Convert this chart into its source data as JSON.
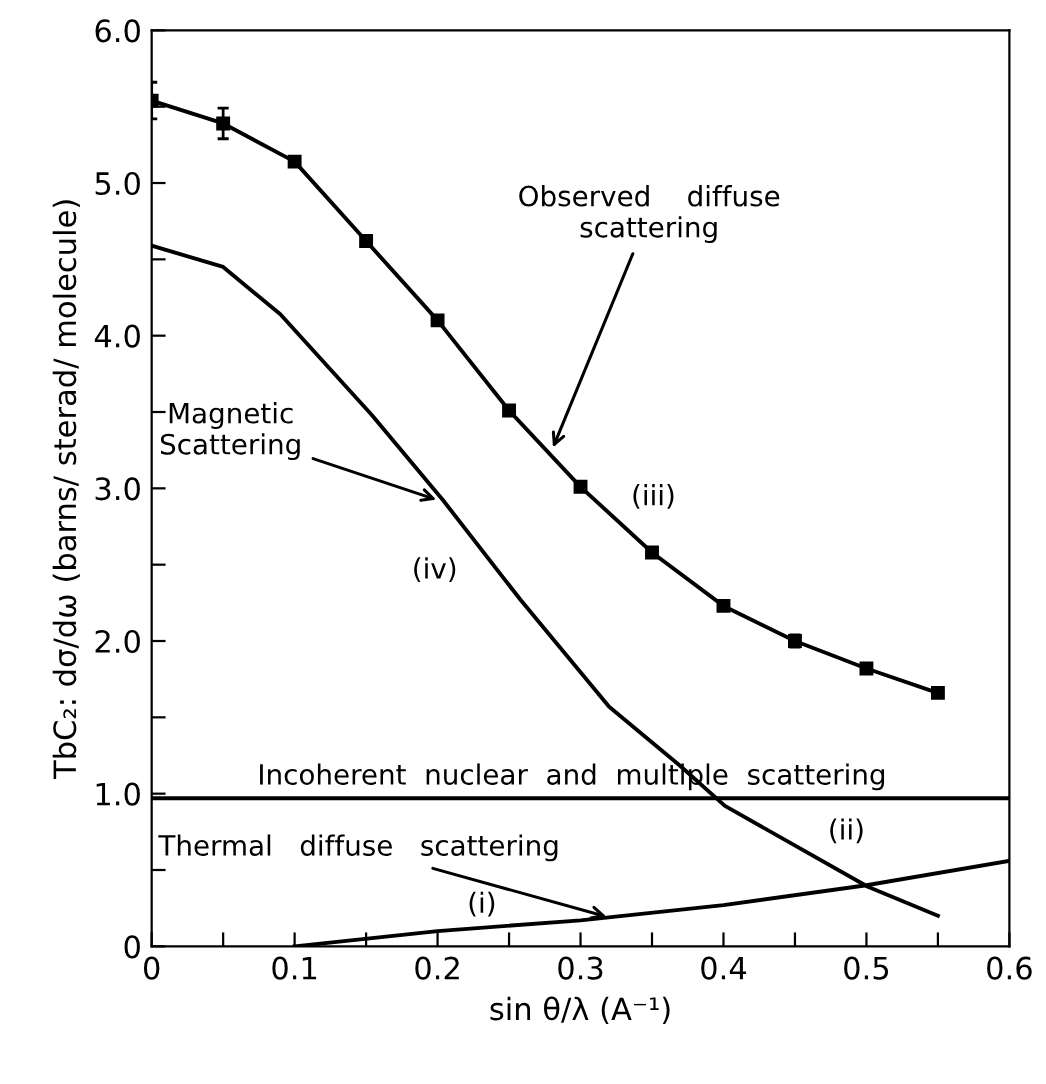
{
  "chart_data": {
    "type": "line",
    "xlabel": "sin θ/λ (A⁻¹)",
    "ylabel": "TbC₂: dσ/dω (barns/ sterad/ molecule)",
    "xlim": [
      0,
      0.6
    ],
    "ylim": [
      0,
      6.0
    ],
    "xticks": [
      {
        "value": 0,
        "label": "0"
      },
      {
        "value": 0.05,
        "label": null
      },
      0.1,
      {
        "value": 0.15,
        "label": null
      },
      0.2,
      {
        "value": 0.25,
        "label": null
      },
      0.3,
      {
        "value": 0.35,
        "label": null
      },
      0.4,
      {
        "value": 0.45,
        "label": null
      },
      0.5,
      {
        "value": 0.55,
        "label": null
      },
      0.6
    ],
    "yticks": [
      {
        "value": 0,
        "label": "0"
      },
      {
        "value": 0.5,
        "label": null
      },
      {
        "value": 1.0,
        "label": "1.0"
      },
      {
        "value": 1.5,
        "label": null
      },
      {
        "value": 2.0,
        "label": "2.0"
      },
      {
        "value": 2.5,
        "label": null
      },
      {
        "value": 3.0,
        "label": "3.0"
      },
      {
        "value": 3.5,
        "label": null
      },
      {
        "value": 4.0,
        "label": "4.0"
      },
      {
        "value": 4.5,
        "label": null
      },
      {
        "value": 5.0,
        "label": "5.0"
      },
      {
        "value": 5.5,
        "label": null
      },
      {
        "value": 6.0,
        "label": "6.0"
      }
    ],
    "grid": false,
    "legend": false,
    "series": [
      {
        "color": "#000000",
        "marker": "square",
        "x": [
          0,
          0.05,
          0.1,
          0.15,
          0.2,
          0.25,
          0.3,
          0.35,
          0.4,
          0.45,
          0.5,
          0.55
        ],
        "values": [
          5.54,
          5.39,
          5.14,
          4.62,
          4.1,
          3.51,
          3.01,
          2.58,
          2.23,
          2.0,
          1.82,
          1.66
        ],
        "errors": [
          0.12,
          0.1,
          0.03,
          0.03,
          0.03,
          0.03,
          0.03,
          0.03,
          0.03,
          0.04,
          0.03,
          0.03
        ]
      },
      {
        "color": "#000000",
        "marker": "none",
        "x": [
          0,
          0.05,
          0.09,
          0.154,
          0.204,
          0.258,
          0.32,
          0.37,
          0.401,
          0.501,
          0.55
        ],
        "values": [
          4.59,
          4.45,
          4.14,
          3.48,
          2.92,
          2.27,
          1.57,
          1.18,
          0.92,
          0.39,
          0.2
        ]
      },
      {
        "color": "#000000",
        "marker": "none",
        "x": [
          0,
          0.6
        ],
        "values": [
          0.97,
          0.97
        ]
      },
      {
        "color": "#000000",
        "marker": "none",
        "x": [
          0.1,
          0.2,
          0.3,
          0.4,
          0.5,
          0.6
        ],
        "values": [
          0,
          0.1,
          0.17,
          0.27,
          0.4,
          0.56
        ]
      }
    ],
    "annotations": [
      {
        "text": "Observed    diffuse\nscattering",
        "x": 0.28,
        "y": 3.25
      },
      "(iii)",
      {
        "text": "Magnetic\nScattering",
        "x": 0.201,
        "y": 2.92
      },
      "(iv)",
      "Incoherent  nuclear  and  multiple  scattering",
      "(ii)",
      {
        "text": "Thermal   diffuse   scattering",
        "x": 0.32,
        "y": 0.19
      },
      "(i)"
    ]
  }
}
